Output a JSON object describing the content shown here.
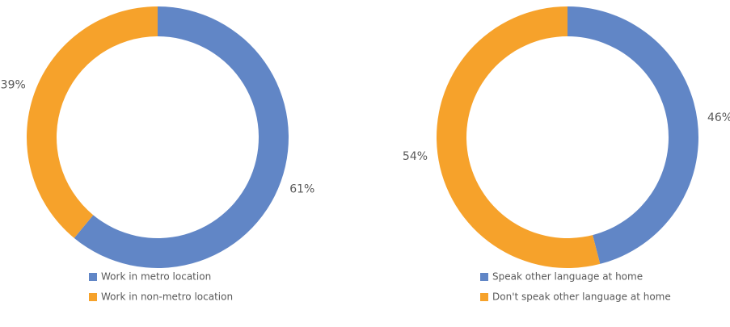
{
  "chart_data": [
    {
      "type": "donut",
      "categories": [
        "Work in metro location",
        "Work in non-metro location"
      ],
      "values": [
        61,
        39
      ],
      "value_labels": [
        "61%",
        "39%"
      ],
      "colors": [
        "#6186c6",
        "#f6a22b"
      ]
    },
    {
      "type": "donut",
      "categories": [
        "Speak other language at home",
        "Don't speak other language at home"
      ],
      "values": [
        46,
        54
      ],
      "value_labels": [
        "46%",
        "54%"
      ],
      "colors": [
        "#6186c6",
        "#f6a22b"
      ]
    }
  ]
}
